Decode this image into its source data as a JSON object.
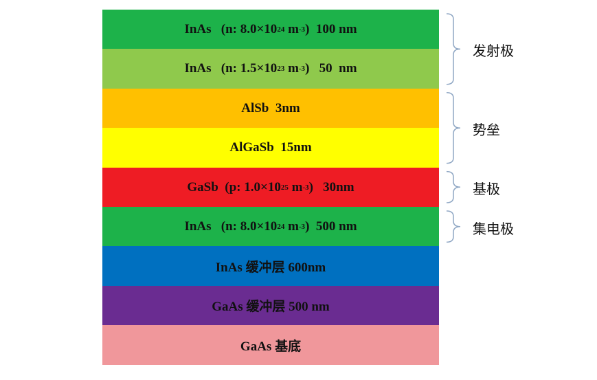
{
  "layers": [
    {
      "parts": [
        "InAs   (n: 8.0×10",
        "24",
        " m",
        "-3",
        ")  100 nm"
      ],
      "color": "#1db24a"
    },
    {
      "parts": [
        "InAs   (n: 1.5×10",
        "23",
        " m",
        "-3",
        ")   50  nm"
      ],
      "color": "#8fc94c"
    },
    {
      "parts": [
        "AlSb  3nm"
      ],
      "color": "#ffc000"
    },
    {
      "parts": [
        "AlGaSb  15nm"
      ],
      "color": "#ffff00"
    },
    {
      "parts": [
        "GaSb  (p: 1.0×10",
        "25",
        " m",
        "-3",
        ")   30nm"
      ],
      "color": "#ee1c24"
    },
    {
      "parts": [
        "InAs   (n: 8.0×10",
        "24",
        " m",
        "-3",
        ")  500 nm"
      ],
      "color": "#1db24a"
    },
    {
      "parts": [
        "InAs 缓冲层 600nm"
      ],
      "color": "#0070c0"
    },
    {
      "parts": [
        "GaAs 缓冲层 500 nm"
      ],
      "color": "#6a2c91"
    },
    {
      "parts": [
        "GaAs 基底"
      ],
      "color": "#f0979b"
    }
  ],
  "regions": [
    {
      "label": "发射极",
      "from_layer": 0,
      "to_layer": 1
    },
    {
      "label": "势垒",
      "from_layer": 2,
      "to_layer": 3
    },
    {
      "label": "基极",
      "from_layer": 4,
      "to_layer": 4
    },
    {
      "label": "集电极",
      "from_layer": 5,
      "to_layer": 5
    }
  ]
}
